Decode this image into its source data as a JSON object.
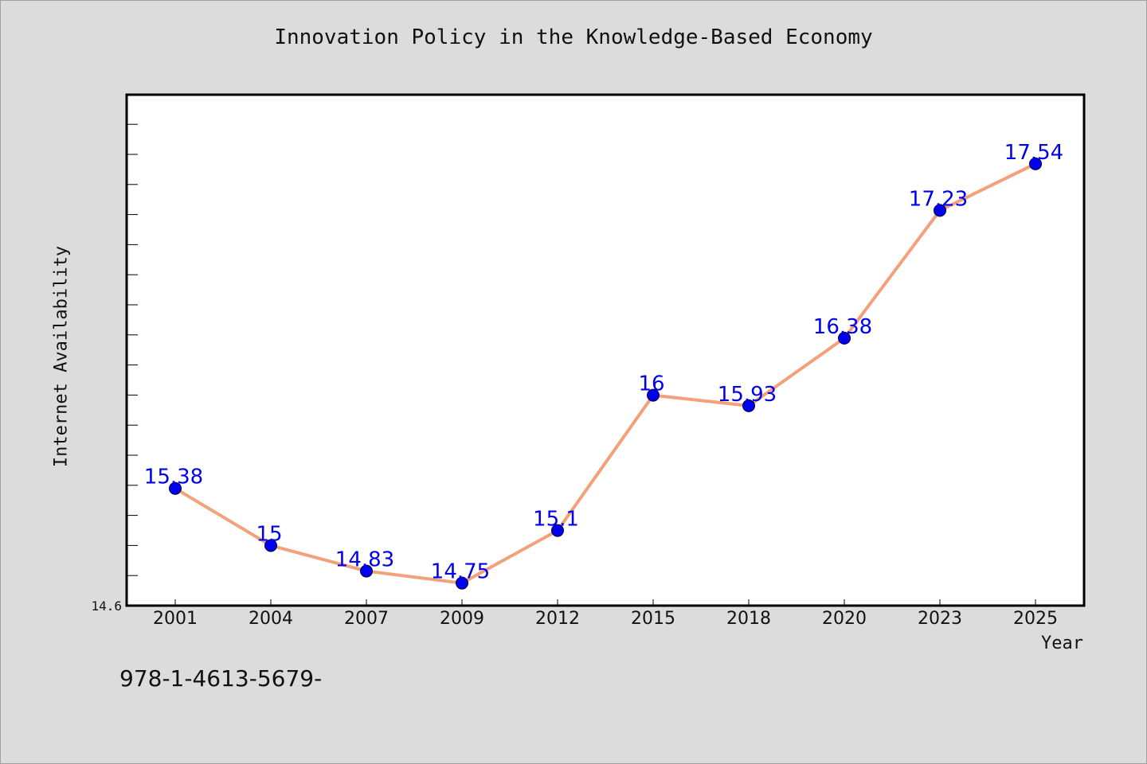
{
  "chart_data": {
    "type": "line",
    "title": "Innovation Policy in the Knowledge-Based Economy",
    "xlabel": "Year",
    "ylabel": "Internet Availability",
    "categories": [
      "2001",
      "2004",
      "2007",
      "2009",
      "2012",
      "2015",
      "2018",
      "2020",
      "2023",
      "2025"
    ],
    "series": [
      {
        "values": [
          15.38,
          15.0,
          14.83,
          14.75,
          15.1,
          16.0,
          15.93,
          16.38,
          17.23,
          17.54
        ],
        "labels": [
          "15.38",
          "15",
          "14.83",
          "14.75",
          "15.1",
          "16",
          "15.93",
          "16.38",
          "17.23",
          "17.54"
        ]
      }
    ],
    "ylim": [
      14.6,
      18.0
    ],
    "y_tick_labels": [
      "14.6"
    ],
    "grid": false,
    "colors": {
      "line": "#f4a07a",
      "marker": "#0000ee",
      "data_label": "#0000ee",
      "plot_background": "#ffffff",
      "page_background": "#dcdcdc"
    }
  },
  "footer_text": "978-1-4613-5679-"
}
